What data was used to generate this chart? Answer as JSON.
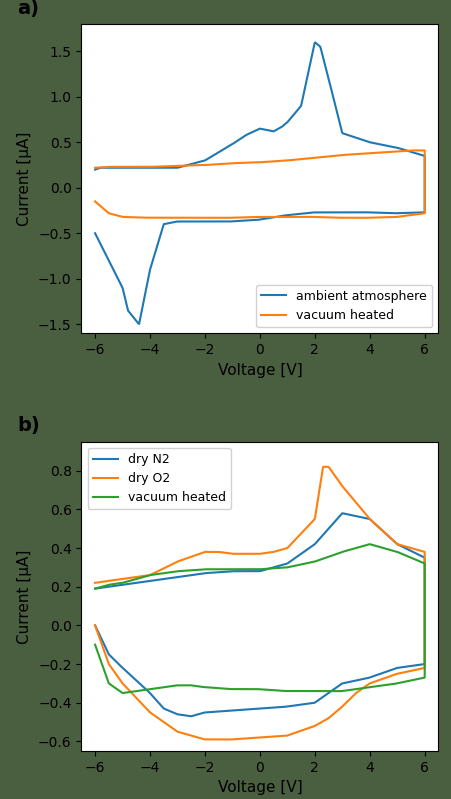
{
  "panel_a": {
    "title": "a)",
    "xlabel": "Voltage [V]",
    "ylabel": "Current [μA]",
    "xlim": [
      -6.5,
      6.5
    ],
    "ylim": [
      -1.6,
      1.8
    ],
    "yticks": [
      -1.5,
      -1.0,
      -0.5,
      0.0,
      0.5,
      1.0,
      1.5
    ],
    "xticks": [
      -6,
      -4,
      -2,
      0,
      2,
      4,
      6
    ],
    "legend_loc": "lower right",
    "lines": {
      "ambient": {
        "label": "ambient atmosphere",
        "color": "#1f77b4"
      },
      "vacuum": {
        "label": "vacuum heated",
        "color": "#ff7f0e"
      }
    }
  },
  "panel_b": {
    "title": "b)",
    "xlabel": "Voltage [V]",
    "ylabel": "Current [μA]",
    "xlim": [
      -6.5,
      6.5
    ],
    "ylim": [
      -0.65,
      0.95
    ],
    "yticks": [
      -0.6,
      -0.4,
      -0.2,
      0.0,
      0.2,
      0.4,
      0.6,
      0.8
    ],
    "xticks": [
      -6,
      -4,
      -2,
      0,
      2,
      4,
      6
    ],
    "legend_loc": "upper left",
    "lines": {
      "dry_n2": {
        "label": "dry N2",
        "color": "#1f77b4"
      },
      "dry_o2": {
        "label": "dry O2",
        "color": "#ff7f0e"
      },
      "vacuum": {
        "label": "vacuum heated",
        "color": "#2ca02c"
      }
    }
  },
  "background_color": "#4a5e40",
  "figure_bg": "#4a5e40"
}
